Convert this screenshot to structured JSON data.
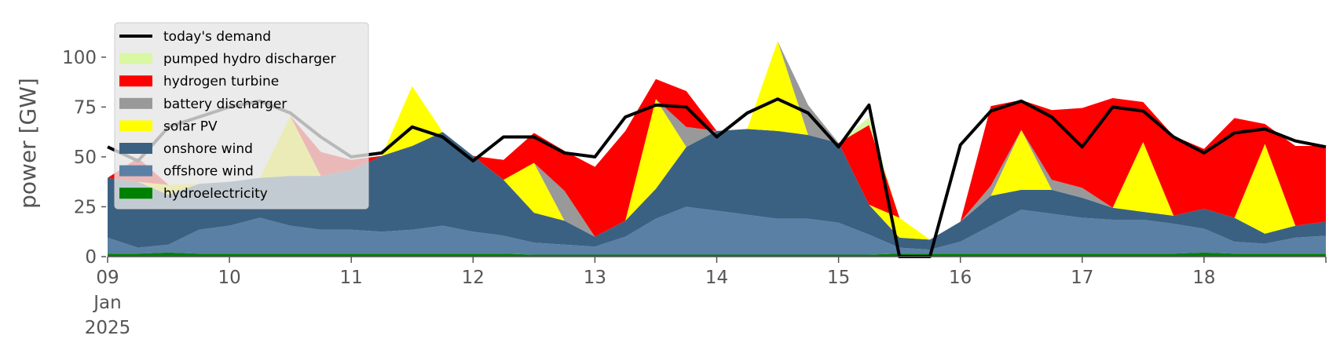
{
  "chart_data": {
    "type": "area",
    "title": "",
    "xlabel": "",
    "ylabel": "power [GW]",
    "xlim": [
      "2025-01-09 00:00",
      "2025-01-19 00:00"
    ],
    "ylim": [
      0,
      120
    ],
    "yticks": [
      0,
      25,
      50,
      75,
      100
    ],
    "xtick_labels": [
      {
        "date": "2025-01-09",
        "label": "09",
        "sub": [
          "Jan",
          "2025"
        ]
      },
      {
        "date": "2025-01-10",
        "label": "10"
      },
      {
        "date": "2025-01-11",
        "label": "11"
      },
      {
        "date": "2025-01-12",
        "label": "12"
      },
      {
        "date": "2025-01-13",
        "label": "13"
      },
      {
        "date": "2025-01-14",
        "label": "14"
      },
      {
        "date": "2025-01-15",
        "label": "15"
      },
      {
        "date": "2025-01-16",
        "label": "16"
      },
      {
        "date": "2025-01-17",
        "label": "17"
      },
      {
        "date": "2025-01-18",
        "label": "18"
      }
    ],
    "grid": false,
    "legend_position": "top-left",
    "x": [
      "2025-01-09 00:00",
      "2025-01-09 06:00",
      "2025-01-09 12:00",
      "2025-01-09 18:00",
      "2025-01-10 00:00",
      "2025-01-10 06:00",
      "2025-01-10 12:00",
      "2025-01-10 18:00",
      "2025-01-11 00:00",
      "2025-01-11 06:00",
      "2025-01-11 12:00",
      "2025-01-11 18:00",
      "2025-01-12 00:00",
      "2025-01-12 06:00",
      "2025-01-12 12:00",
      "2025-01-12 18:00",
      "2025-01-13 00:00",
      "2025-01-13 06:00",
      "2025-01-13 12:00",
      "2025-01-13 18:00",
      "2025-01-14 00:00",
      "2025-01-14 06:00",
      "2025-01-14 12:00",
      "2025-01-14 18:00",
      "2025-01-15 00:00",
      "2025-01-15 06:00",
      "2025-01-15 12:00",
      "2025-01-15 18:00",
      "2025-01-16 00:00",
      "2025-01-16 06:00",
      "2025-01-16 12:00",
      "2025-01-16 18:00",
      "2025-01-17 00:00",
      "2025-01-17 06:00",
      "2025-01-17 12:00",
      "2025-01-17 18:00",
      "2025-01-18 00:00",
      "2025-01-18 06:00",
      "2025-01-18 12:00",
      "2025-01-18 18:00",
      "2025-01-19 00:00"
    ],
    "series": [
      {
        "name": "hydroelectricity",
        "color": "#008000",
        "values": [
          1.5,
          1.5,
          2,
          1.5,
          1.5,
          1.5,
          1.5,
          1.5,
          1.5,
          1.5,
          1.5,
          1.5,
          1.5,
          1.5,
          1,
          1,
          1,
          1,
          1,
          1,
          1,
          1,
          1,
          1,
          1,
          1,
          1.5,
          1.5,
          1.5,
          1.5,
          1.5,
          1.5,
          1.5,
          1.5,
          1.5,
          1.5,
          2,
          1.5,
          1.5,
          1.5,
          1.5
        ]
      },
      {
        "name": "offshore wind",
        "color": "#5b80a5",
        "values": [
          8,
          3,
          4,
          12,
          14,
          18,
          14,
          12,
          12,
          11,
          12,
          14,
          11,
          9,
          6,
          5,
          4,
          9,
          18,
          24,
          22,
          20,
          18,
          18,
          16,
          10,
          3,
          2,
          6,
          14,
          22,
          20,
          18,
          17,
          17,
          15,
          12,
          6,
          5,
          8,
          9
        ]
      },
      {
        "name": "onshore wind",
        "color": "#3b6182",
        "values": [
          30,
          33,
          25,
          23,
          22,
          20,
          25,
          27,
          30,
          38,
          42,
          47,
          38,
          28,
          15,
          12,
          5,
          8,
          15,
          30,
          40,
          43,
          44,
          42,
          40,
          15,
          5,
          5,
          10,
          15,
          10,
          12,
          10,
          6,
          4,
          4,
          10,
          12,
          5,
          6,
          7
        ]
      },
      {
        "name": "solar PV",
        "color": "#ffff00",
        "values": [
          0,
          0,
          5,
          0,
          0,
          0,
          30,
          0,
          0,
          0,
          30,
          0,
          0,
          0,
          25,
          0,
          0,
          0,
          45,
          0,
          0,
          0,
          45,
          0,
          0,
          0,
          10,
          0,
          0,
          0,
          30,
          0,
          0,
          0,
          35,
          0,
          0,
          0,
          45,
          0,
          0
        ]
      },
      {
        "name": "battery discharger",
        "color": "#999999",
        "values": [
          0,
          0,
          0,
          0,
          0,
          0,
          0,
          0,
          0,
          0,
          0,
          0,
          0,
          0,
          0,
          15,
          0,
          0,
          0,
          10,
          0,
          0,
          0,
          15,
          0,
          0,
          0,
          0,
          0,
          5,
          0,
          5,
          5,
          0,
          0,
          0,
          0,
          0,
          0,
          0,
          0
        ]
      },
      {
        "name": "hydrogen turbine",
        "color": "#ff0000",
        "values": [
          0,
          12,
          0,
          0,
          0,
          0,
          0,
          12,
          5,
          0,
          0,
          0,
          0,
          10,
          15,
          20,
          35,
          45,
          10,
          18,
          0,
          0,
          0,
          0,
          0,
          40,
          0,
          0,
          0,
          40,
          15,
          35,
          40,
          55,
          20,
          40,
          30,
          50,
          10,
          40,
          38
        ]
      },
      {
        "name": "pumped hydro discharger",
        "color": "#d9f7a3",
        "values": [
          0,
          0,
          0,
          0,
          0,
          0,
          0,
          0,
          0,
          0,
          0,
          0,
          0,
          0,
          0,
          0,
          0,
          0,
          0,
          0,
          0,
          0,
          0,
          0,
          0,
          4,
          0,
          0,
          0,
          0,
          0,
          0,
          0,
          0,
          0,
          0,
          0,
          0,
          0,
          0,
          0
        ]
      }
    ],
    "demand": {
      "name": "today's demand",
      "color": "#000000",
      "values": [
        55,
        48,
        65,
        70,
        75,
        78,
        72,
        60,
        50,
        52,
        65,
        60,
        48,
        60,
        60,
        52,
        50,
        70,
        76,
        75,
        60,
        72,
        79,
        72,
        55,
        76,
        0,
        0,
        56,
        73,
        78,
        70,
        55,
        75,
        73,
        60,
        52,
        62,
        64,
        58,
        55
      ]
    },
    "legend": [
      "today's demand",
      "pumped hydro discharger",
      "hydrogen turbine",
      "battery discharger",
      "solar PV",
      "onshore wind",
      "offshore wind",
      "hydroelectricity"
    ]
  }
}
